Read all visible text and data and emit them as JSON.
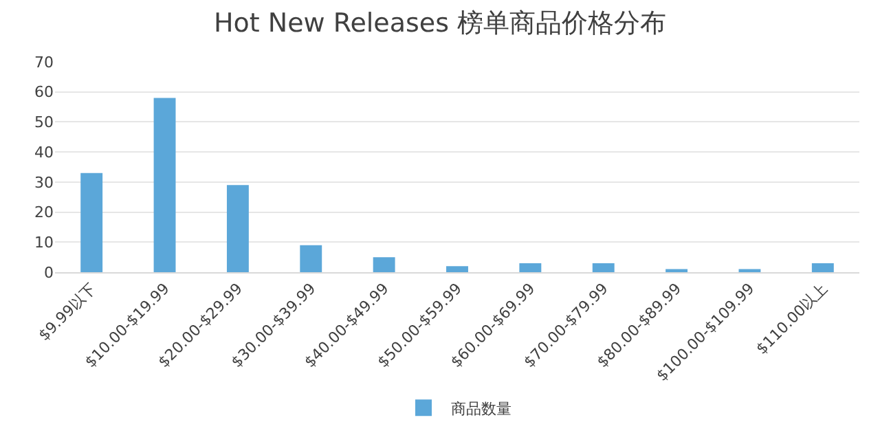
{
  "chart_data": {
    "type": "bar",
    "title": "Hot New Releases 榜单商品价格分布",
    "categories": [
      "$9.99以下",
      "$10.00-$19.99",
      "$20.00-$29.99",
      "$30.00-$39.99",
      "$40.00-$49.99",
      "$50.00-$59.99",
      "$60.00-$69.99",
      "$70.00-$79.99",
      "$80.00-$89.99",
      "$100.00-$109.99",
      "$110.00以上"
    ],
    "series": [
      {
        "name": "商品数量",
        "color": "#5ba7d9",
        "values": [
          33,
          58,
          29,
          9,
          5,
          2,
          3,
          3,
          1,
          1,
          3
        ]
      }
    ],
    "ylim": [
      0,
      70
    ],
    "yticks": [
      0,
      10,
      20,
      30,
      40,
      50,
      60,
      70
    ],
    "grid": "y",
    "legend": "bottom"
  }
}
